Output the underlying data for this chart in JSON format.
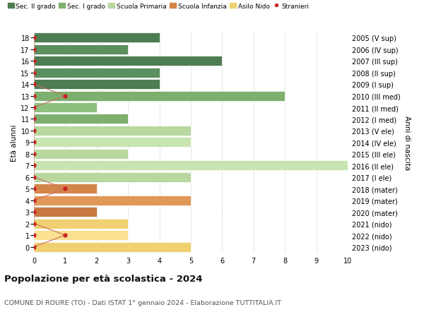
{
  "ages": [
    18,
    17,
    16,
    15,
    14,
    13,
    12,
    11,
    10,
    9,
    8,
    7,
    6,
    5,
    4,
    3,
    2,
    1,
    0
  ],
  "years": [
    "2005 (V sup)",
    "2006 (IV sup)",
    "2007 (III sup)",
    "2008 (II sup)",
    "2009 (I sup)",
    "2010 (III med)",
    "2011 (II med)",
    "2012 (I med)",
    "2013 (V ele)",
    "2014 (IV ele)",
    "2015 (III ele)",
    "2016 (II ele)",
    "2017 (I ele)",
    "2018 (mater)",
    "2019 (mater)",
    "2020 (mater)",
    "2021 (nido)",
    "2022 (nido)",
    "2023 (nido)"
  ],
  "bar_values": [
    4,
    3,
    6,
    4,
    4,
    8,
    2,
    3,
    5,
    5,
    3,
    10,
    5,
    2,
    5,
    2,
    3,
    3,
    5
  ],
  "bar_colors": [
    "#4e7d52",
    "#5a8f5e",
    "#4e7d52",
    "#5a8f5e",
    "#4e7d52",
    "#7db06e",
    "#8dc07e",
    "#7db06e",
    "#b8d8a0",
    "#c8e4b0",
    "#b8d8a0",
    "#c8e4b0",
    "#b8d8a0",
    "#d4854a",
    "#e09858",
    "#c87840",
    "#f0d070",
    "#fae090",
    "#f0d070"
  ],
  "stranieri_x": [
    0,
    0,
    0,
    0,
    0,
    1,
    0,
    0,
    0,
    0,
    0,
    0,
    0,
    1,
    0,
    0,
    0,
    1,
    0
  ],
  "legend_labels": [
    "Sec. II grado",
    "Sec. I grado",
    "Scuola Primaria",
    "Scuola Infanzia",
    "Asilo Nido",
    "Stranieri"
  ],
  "legend_colors": [
    "#4e7d52",
    "#7db06e",
    "#b8d8a0",
    "#d4854a",
    "#f0d070",
    "#cc2222"
  ],
  "title": "Popolazione per età scolastica - 2024",
  "subtitle": "COMUNE DI ROURE (TO) - Dati ISTAT 1° gennaio 2024 - Elaborazione TUTTITALIA.IT",
  "ylabel_left": "Età alunni",
  "ylabel_right": "Anni di nascita",
  "xlim": [
    0,
    10
  ],
  "ylim": [
    -0.5,
    18.5
  ],
  "background_color": "#ffffff",
  "grid_color": "#cccccc",
  "bar_height": 0.85,
  "stranieri_dot_color": "#cc2222",
  "stranieri_line_color": "#c87060"
}
